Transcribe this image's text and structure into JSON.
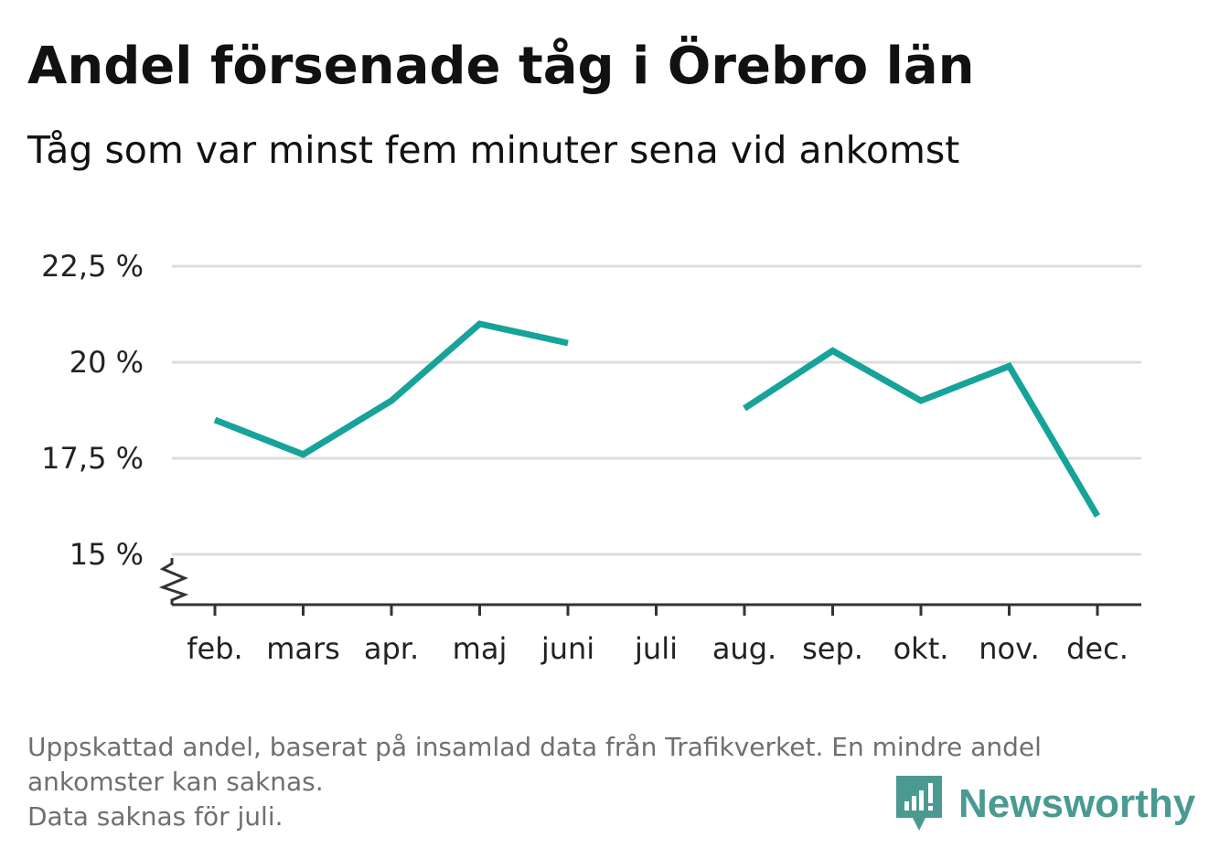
{
  "header": {
    "title": "Andel försenade tåg i Örebro län",
    "subtitle": "Tåg som var minst fem minuter sena vid ankomst"
  },
  "chart_data": {
    "type": "line",
    "categories": [
      "feb.",
      "mars",
      "apr.",
      "maj",
      "juni",
      "juli",
      "aug.",
      "sep.",
      "okt.",
      "nov.",
      "dec."
    ],
    "series": [
      {
        "values": [
          18.5,
          17.6,
          19.0,
          21.0,
          20.5,
          null,
          18.8,
          20.3,
          19.0,
          19.9,
          16.0
        ]
      }
    ],
    "y_ticks": [
      15,
      17.5,
      20,
      22.5
    ],
    "y_tick_labels": [
      "15 %",
      "17,5 %",
      "20 %",
      "22,5 %"
    ],
    "ylim": [
      13.7,
      22.5
    ],
    "grid": true,
    "axis_break": true,
    "line_color": "#16a39a",
    "grid_color": "#dcdcdc"
  },
  "footnote": {
    "line1": "Uppskattad andel, baserat på insamlad data från Trafikverket. En mindre andel",
    "line2": "ankomster kan saknas.",
    "line3": "Data saknas för juli."
  },
  "brand": {
    "name": "Newsworthy",
    "icon": "newsworthy-logo-icon",
    "color": "#4a9a92"
  }
}
